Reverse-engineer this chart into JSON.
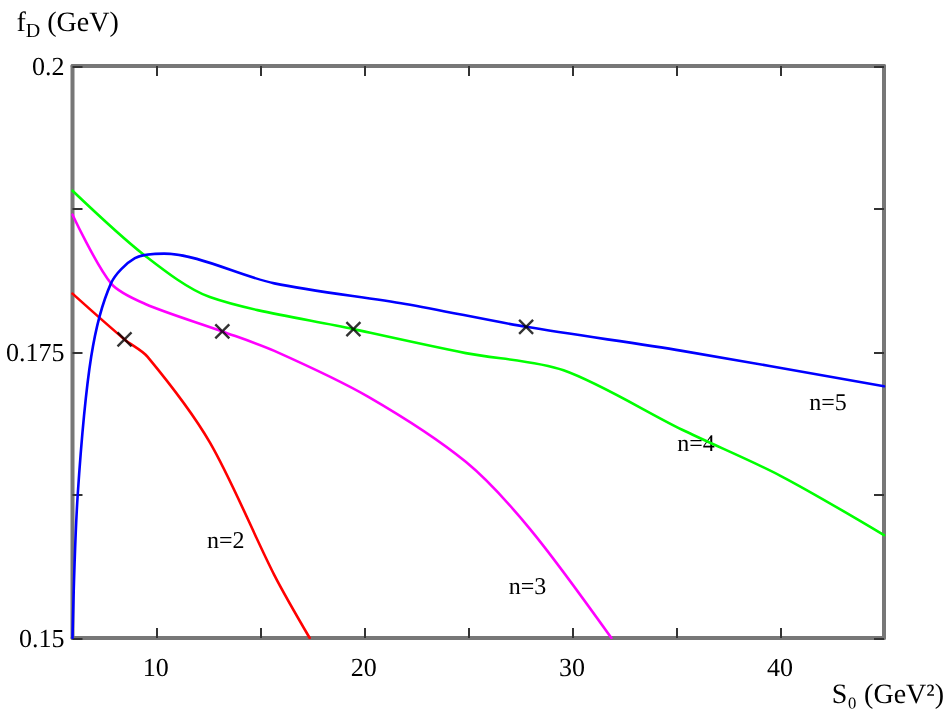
{
  "chart_data": {
    "type": "line",
    "xlabel": "S₀ (GeV²)",
    "ylabel": "f$_{D}$ (GeV)",
    "xlim": [
      6,
      45
    ],
    "ylim": [
      0.15,
      0.2
    ],
    "xticks": [
      10,
      {
        "value": 15,
        "label": null
      },
      20,
      {
        "value": 25,
        "label": null
      },
      30,
      {
        "value": 35,
        "label": null
      },
      40
    ],
    "yticks": [
      0.15,
      {
        "value": 0.1625,
        "label": null
      },
      0.175,
      {
        "value": 0.1875,
        "label": null
      },
      0.2
    ],
    "grid": false,
    "legend": false,
    "marker": "none",
    "line_style": "solid",
    "series": [
      {
        "name": "n=2",
        "color": "#ff0000",
        "x": [
          6,
          8.5,
          9.6,
          12.6,
          15.7,
          17.4
        ],
        "values": [
          0.1801,
          0.1761,
          0.1746,
          0.1671,
          0.1555,
          0.15
        ]
      },
      {
        "name": "n=3",
        "color": "#ff00ff",
        "x": [
          6,
          7.85,
          9.5,
          13.2,
          15.7,
          20.2,
          24.9,
          28,
          31.9
        ],
        "values": [
          0.187,
          0.181,
          0.1792,
          0.1768,
          0.1751,
          0.1711,
          0.1654,
          0.1595,
          0.15
        ]
      },
      {
        "name": "n=4",
        "color": "#00ff00",
        "x": [
          6,
          9.5,
          12.6,
          19.5,
          24.9,
          29.6,
          35.3,
          40,
          45
        ],
        "values": [
          0.1891,
          0.1834,
          0.1798,
          0.177,
          0.1749,
          0.1734,
          0.1682,
          0.1642,
          0.159
        ]
      },
      {
        "name": "n=5",
        "color": "#0000ff",
        "x": [
          6,
          6.25,
          6.9,
          7.85,
          9,
          10.4,
          15.7,
          22,
          27.8,
          35.3,
          45
        ],
        "values": [
          0.15,
          0.1625,
          0.1746,
          0.181,
          0.1832,
          0.1836,
          0.181,
          0.1792,
          0.1772,
          0.1751,
          0.172
        ]
      },
      {
        "type": "scatter",
        "marker": "cross",
        "color": "#000000",
        "x": [
          8.5,
          13.2,
          19.5,
          27.8
        ],
        "values": [
          0.1761,
          0.1768,
          0.177,
          0.1772
        ]
      }
    ]
  }
}
